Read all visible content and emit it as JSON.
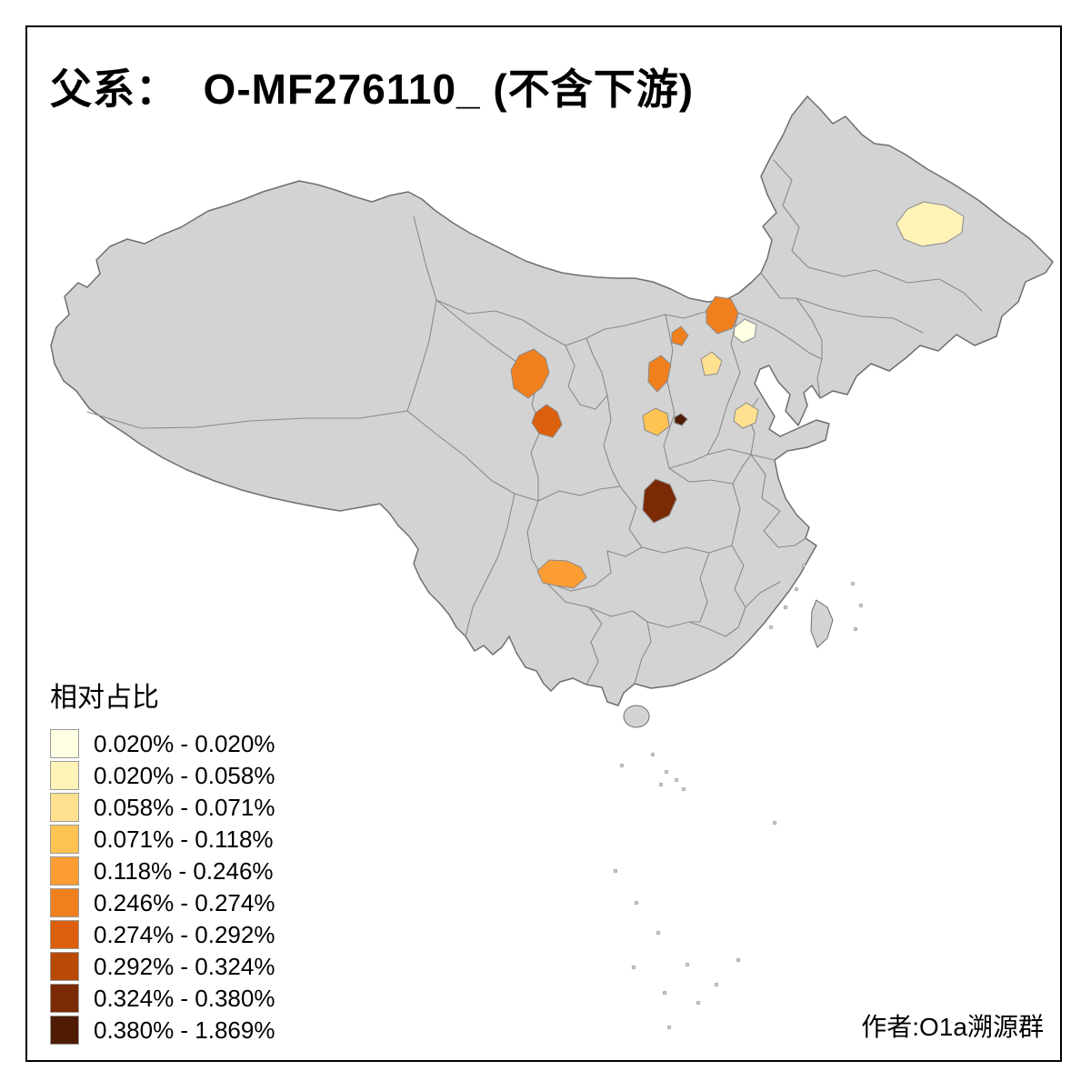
{
  "title": "父系：  O-MF276110_ (不含下游)",
  "author": "作者:O1a溯源群",
  "legend": {
    "title": "相对占比",
    "bins": [
      {
        "label": "0.020% - 0.020%",
        "color": "#FFFFE3"
      },
      {
        "label": "0.020% - 0.058%",
        "color": "#FFF3B8"
      },
      {
        "label": "0.058% - 0.071%",
        "color": "#FEE08F"
      },
      {
        "label": "0.071% - 0.118%",
        "color": "#FEC352"
      },
      {
        "label": "0.118% - 0.246%",
        "color": "#FB9D33"
      },
      {
        "label": "0.246% - 0.274%",
        "color": "#F07F1E"
      },
      {
        "label": "0.274% - 0.292%",
        "color": "#DC5F0D"
      },
      {
        "label": "0.292% - 0.324%",
        "color": "#B94A06"
      },
      {
        "label": "0.324% - 0.380%",
        "color": "#7A2A04"
      },
      {
        "label": "0.380% - 1.869%",
        "color": "#4F1C03"
      }
    ]
  },
  "map": {
    "base_fill": "#D3D3D3",
    "border_color": "#8A8A8A",
    "outline_color": "#6E6E6E",
    "background": "#FFFFFF",
    "regions": [
      {
        "name": "region-west-heilongjiang",
        "bin": 2,
        "color": "#FFF3B8"
      },
      {
        "name": "region-beijing-area",
        "bin": 1,
        "color": "#FFFFE3"
      },
      {
        "name": "region-ordos-area",
        "bin": 6,
        "color": "#F07F1E"
      },
      {
        "name": "region-west-inner-mongolia",
        "bin": 6,
        "color": "#F07F1E"
      },
      {
        "name": "region-north-shaanxi",
        "bin": 6,
        "color": "#F07F1E"
      },
      {
        "name": "region-central-shanxi",
        "bin": 3,
        "color": "#FEE08F"
      },
      {
        "name": "region-central-gansu",
        "bin": 6,
        "color": "#F07F1E"
      },
      {
        "name": "region-south-gansu",
        "bin": 7,
        "color": "#DC5F0D"
      },
      {
        "name": "region-south-shanxi",
        "bin": 4,
        "color": "#FEC352"
      },
      {
        "name": "region-small-dark-spot",
        "bin": 10,
        "color": "#4F1C03"
      },
      {
        "name": "region-west-shandong",
        "bin": 3,
        "color": "#FEE08F"
      },
      {
        "name": "region-daba-mountains",
        "bin": 9,
        "color": "#7A2A04"
      },
      {
        "name": "region-south-sichuan",
        "bin": 5,
        "color": "#FB9D33"
      }
    ]
  }
}
